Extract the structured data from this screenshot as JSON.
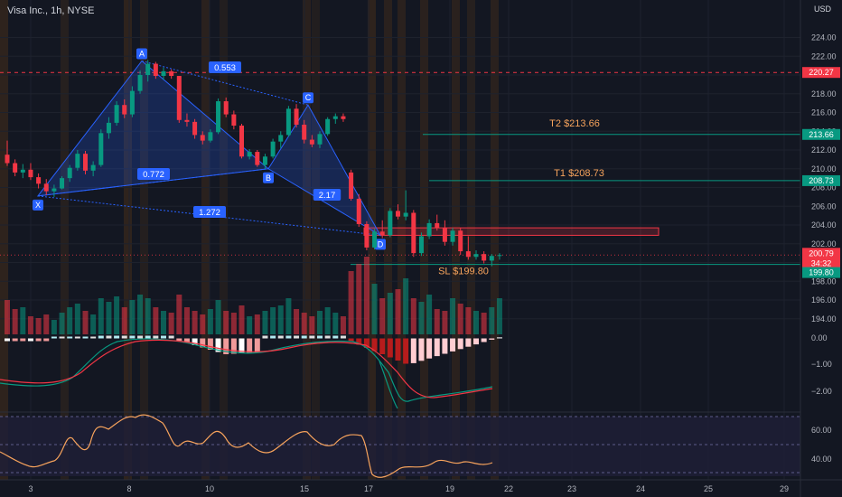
{
  "header": {
    "title": "Visa Inc., 1h, NYSE",
    "currency": "USD"
  },
  "price_axis": {
    "ticks": [
      "224.00",
      "222.00",
      "218.00",
      "216.00",
      "214.00",
      "212.00",
      "210.00",
      "208.00",
      "206.00",
      "204.00",
      "202.00",
      "198.00",
      "196.00",
      "194.00"
    ],
    "badges": [
      {
        "text": "220.27",
        "color": "#f23645"
      },
      {
        "text": "213.66",
        "color": "#089981"
      },
      {
        "text": "208.73",
        "color": "#089981"
      },
      {
        "text": "200.79",
        "color": "#f23645"
      },
      {
        "text": "34:32",
        "color": "#f23645"
      },
      {
        "text": "199.80",
        "color": "#089981"
      }
    ]
  },
  "macd_axis": {
    "ticks": [
      "0.00",
      "−1.00",
      "−2.00"
    ]
  },
  "rsi_axis": {
    "ticks": [
      "60.00",
      "40.00"
    ]
  },
  "time_axis": {
    "ticks": [
      "3",
      "8",
      "10",
      "15",
      "17",
      "19",
      "22",
      "23",
      "24",
      "25",
      "29"
    ]
  },
  "pattern": {
    "points": [
      "X",
      "A",
      "B",
      "C",
      "D"
    ],
    "ratios": [
      "0.553",
      "0.772",
      "2.17",
      "1.272"
    ]
  },
  "levels": [
    {
      "label": "T2 $213.66",
      "color": "#f7a35c"
    },
    {
      "label": "T1 $208.73",
      "color": "#f7a35c"
    },
    {
      "label": "SL $199.80",
      "color": "#f7a35c"
    }
  ],
  "colors": {
    "up": "#089981",
    "down": "#f23645",
    "pattern": "#2962ff",
    "rsi": "#f7a35c",
    "bg": "#131722"
  },
  "chart_data": {
    "type": "candlestick",
    "title": "Visa Inc., 1h, NYSE",
    "y_unit": "USD",
    "ylim": [
      192.4,
      225.6
    ],
    "candles": [
      [
        211.5,
        213.0,
        210.3,
        210.6
      ],
      [
        210.6,
        211.0,
        209.2,
        209.6
      ],
      [
        209.6,
        210.5,
        209.0,
        209.9
      ],
      [
        209.9,
        210.6,
        208.8,
        209.1
      ],
      [
        209.1,
        209.5,
        207.9,
        208.4
      ],
      [
        208.4,
        208.9,
        207.2,
        207.6
      ],
      [
        207.6,
        208.3,
        207.0,
        207.9
      ],
      [
        207.9,
        209.2,
        207.8,
        209.0
      ],
      [
        209.0,
        210.4,
        208.6,
        210.1
      ],
      [
        210.1,
        212.0,
        209.8,
        211.6
      ],
      [
        211.6,
        211.9,
        209.4,
        209.8
      ],
      [
        209.8,
        210.8,
        209.2,
        210.4
      ],
      [
        210.4,
        214.2,
        210.2,
        213.8
      ],
      [
        213.8,
        215.5,
        213.2,
        214.9
      ],
      [
        214.9,
        217.2,
        214.6,
        216.8
      ],
      [
        216.8,
        217.4,
        215.4,
        215.8
      ],
      [
        215.8,
        218.8,
        215.5,
        218.3
      ],
      [
        218.3,
        220.5,
        218.0,
        220.0
      ],
      [
        220.0,
        221.6,
        219.3,
        221.2
      ],
      [
        221.2,
        221.4,
        219.6,
        219.9
      ],
      [
        219.9,
        220.8,
        219.5,
        220.4
      ],
      [
        220.4,
        220.6,
        219.6,
        219.9
      ],
      [
        219.9,
        219.9,
        214.9,
        215.2
      ],
      [
        215.2,
        215.9,
        214.5,
        215.0
      ],
      [
        215.0,
        215.3,
        213.2,
        213.6
      ],
      [
        213.6,
        214.0,
        212.6,
        213.0
      ],
      [
        213.0,
        214.2,
        212.8,
        213.9
      ],
      [
        213.9,
        217.5,
        213.7,
        217.2
      ],
      [
        217.2,
        217.6,
        215.5,
        215.8
      ],
      [
        215.8,
        216.2,
        214.2,
        214.6
      ],
      [
        214.6,
        214.8,
        211.1,
        211.3
      ],
      [
        211.3,
        212.1,
        211.0,
        211.8
      ],
      [
        211.8,
        212.0,
        210.2,
        210.4
      ],
      [
        210.4,
        211.6,
        210.0,
        211.3
      ],
      [
        211.3,
        213.2,
        211.1,
        212.9
      ],
      [
        212.9,
        214.0,
        212.2,
        213.6
      ],
      [
        213.6,
        216.7,
        213.4,
        216.4
      ],
      [
        216.4,
        216.9,
        214.4,
        214.7
      ],
      [
        214.7,
        215.2,
        212.7,
        213.1
      ],
      [
        213.1,
        213.6,
        212.3,
        212.6
      ],
      [
        212.6,
        214.0,
        212.2,
        213.7
      ],
      [
        213.7,
        215.5,
        213.5,
        215.3
      ],
      [
        215.3,
        215.9,
        214.8,
        215.6
      ],
      [
        215.6,
        215.9,
        215.0,
        215.3
      ],
      [
        209.6,
        209.9,
        206.6,
        206.8
      ],
      [
        206.8,
        207.3,
        203.8,
        204.1
      ],
      [
        204.1,
        204.4,
        201.3,
        201.6
      ],
      [
        201.6,
        203.6,
        201.4,
        203.3
      ],
      [
        203.3,
        204.5,
        202.6,
        202.9
      ],
      [
        202.9,
        205.8,
        202.7,
        205.5
      ],
      [
        205.5,
        206.2,
        204.6,
        204.9
      ],
      [
        204.9,
        207.7,
        204.5,
        205.3
      ],
      [
        205.3,
        205.6,
        200.6,
        201.0
      ],
      [
        201.0,
        203.2,
        200.7,
        202.8
      ],
      [
        202.8,
        204.6,
        202.5,
        204.2
      ],
      [
        204.2,
        205.1,
        203.4,
        203.7
      ],
      [
        203.7,
        204.5,
        201.8,
        202.2
      ],
      [
        202.2,
        203.7,
        201.8,
        203.4
      ],
      [
        203.4,
        203.7,
        200.8,
        201.2
      ],
      [
        201.2,
        202.8,
        200.3,
        200.6
      ],
      [
        200.6,
        201.3,
        200.3,
        200.9
      ],
      [
        200.9,
        201.2,
        199.9,
        200.2
      ],
      [
        200.2,
        200.9,
        199.6,
        200.7
      ],
      [
        200.7,
        201.0,
        200.3,
        200.79
      ]
    ],
    "pattern_prices": {
      "X": 207.1,
      "A": 221.5,
      "B": 210.0,
      "C": 216.8,
      "D": 202.9
    },
    "levels_prices": {
      "T2": 213.66,
      "T1": 208.73,
      "SL": 199.8,
      "prior": 220.27,
      "last": 200.79
    },
    "zone": [
      202.9,
      203.7
    ]
  }
}
